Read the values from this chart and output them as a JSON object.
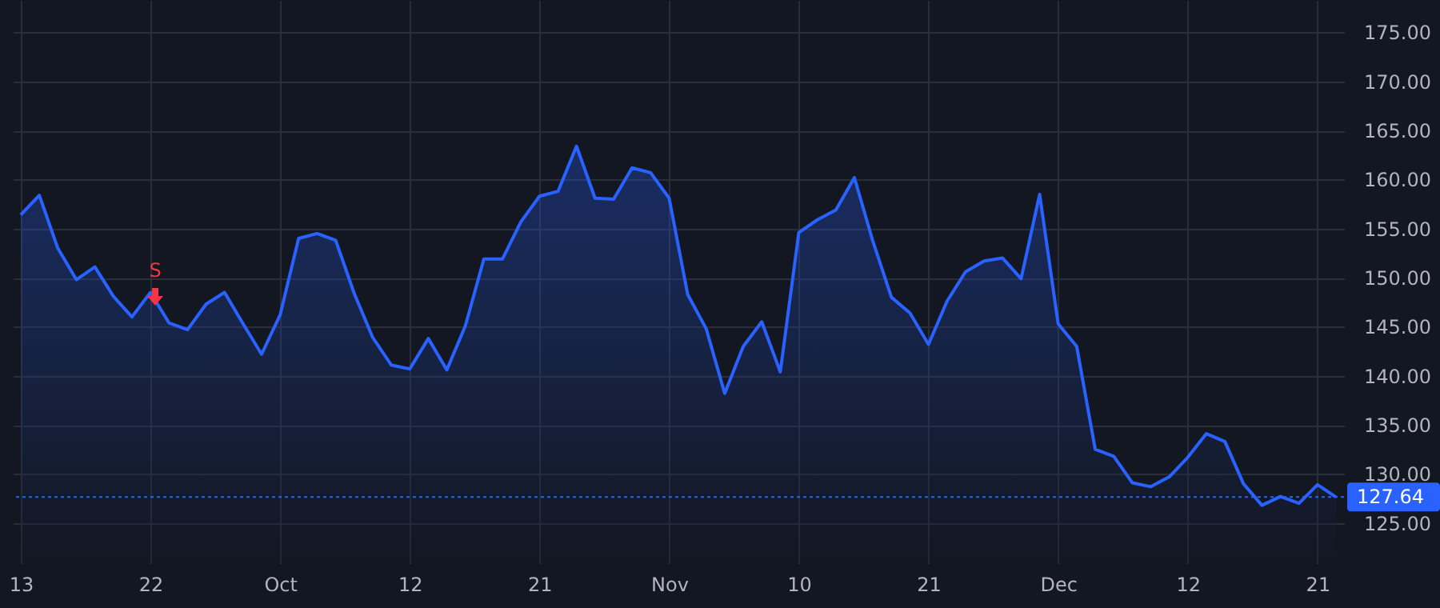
{
  "chart_data": {
    "type": "area",
    "categories": [
      "13",
      null,
      null,
      null,
      null,
      null,
      null,
      "22",
      null,
      null,
      null,
      null,
      null,
      null,
      "Oct",
      null,
      null,
      null,
      null,
      null,
      null,
      "12",
      null,
      null,
      null,
      null,
      null,
      null,
      "21",
      null,
      null,
      null,
      null,
      null,
      null,
      "Nov",
      null,
      null,
      null,
      null,
      null,
      null,
      "10",
      null,
      null,
      null,
      null,
      null,
      null,
      "21",
      null,
      null,
      null,
      null,
      null,
      null,
      "Dec",
      null,
      null,
      null,
      null,
      null,
      null,
      "12",
      null,
      null,
      null,
      null,
      null,
      null,
      "21",
      null
    ],
    "series": [
      {
        "color": "#2962ff",
        "values": [
          156.4,
          158.4,
          153.0,
          149.8,
          151.1,
          148.1,
          146.0,
          148.5,
          145.4,
          144.7,
          147.3,
          148.5,
          145.3,
          142.2,
          146.2,
          154.0,
          154.5,
          153.8,
          148.4,
          143.9,
          141.1,
          140.7,
          143.8,
          140.6,
          145.1,
          151.9,
          151.9,
          155.7,
          158.3,
          158.8,
          163.4,
          158.1,
          158.0,
          161.2,
          160.7,
          158.1,
          148.3,
          144.8,
          138.2,
          143.0,
          145.5,
          140.4,
          154.6,
          155.9,
          156.9,
          160.2,
          153.7,
          148.0,
          146.4,
          143.2,
          147.6,
          150.6,
          151.7,
          152.0,
          149.9,
          158.5,
          145.3,
          143.0,
          132.5,
          131.8,
          129.1,
          128.7,
          129.7,
          131.7,
          134.1,
          133.3,
          129.0,
          126.8,
          127.7,
          127.0,
          128.9,
          127.64
        ]
      }
    ],
    "ylim": [
      120.9,
      178.3
    ],
    "yticks": [
      {
        "value": 125,
        "label": "125.00"
      },
      {
        "value": 130,
        "label": "130.00"
      },
      {
        "value": 135,
        "label": "135.00"
      },
      {
        "value": 140,
        "label": "140.00"
      },
      {
        "value": 145,
        "label": "145.00"
      },
      {
        "value": 150,
        "label": "150.00"
      },
      {
        "value": 155,
        "label": "155.00"
      },
      {
        "value": 160,
        "label": "160.00"
      },
      {
        "value": 165,
        "label": "165.00"
      },
      {
        "value": 170,
        "label": "170.00"
      },
      {
        "value": 175,
        "label": "175.00"
      }
    ],
    "grid": true,
    "ref_lines": [
      {
        "axis": "y",
        "value": 127.64,
        "label": "127.64",
        "color": "#2962ff",
        "line_style": "dotted"
      }
    ],
    "annotations": [
      "S"
    ]
  }
}
